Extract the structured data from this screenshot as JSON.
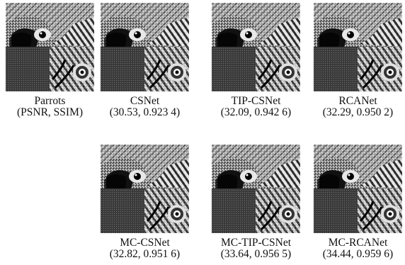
{
  "figure": {
    "panels": [
      {
        "method": "Parrots",
        "metrics": "(PSNR, SSIM)"
      },
      {
        "method": "CSNet",
        "metrics": "(30.53, 0.923 4)"
      },
      {
        "method": "TIP-CSNet",
        "metrics": "(32.09, 0.942 6)"
      },
      {
        "method": "RCANet",
        "metrics": "(32.29, 0.950 2)"
      },
      {
        "method": "MC-CSNet",
        "metrics": "(32.82, 0.951 6)"
      },
      {
        "method": "MC-TIP-CSNet",
        "metrics": "(33.64, 0.956 5)"
      },
      {
        "method": "MC-RCANet",
        "metrics": "(34.44, 0.959 6)"
      }
    ]
  }
}
